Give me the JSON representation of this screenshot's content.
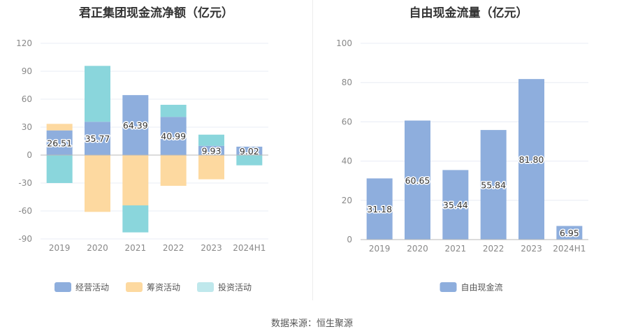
{
  "source_label": "数据来源：恒生聚源",
  "colors": {
    "operating": "#8eaedd",
    "financing": "#fdd9a0",
    "investing": "#8ad6dc",
    "fcf": "#8eaedd"
  },
  "chart_data": [
    {
      "type": "bar",
      "stacked": true,
      "title": "君正集团现金流净额（亿元）",
      "categories": [
        "2019",
        "2020",
        "2021",
        "2022",
        "2023",
        "2024H1"
      ],
      "series": [
        {
          "name": "经营活动",
          "values": [
            26.51,
            35.77,
            64.39,
            40.99,
            9.93,
            9.02
          ],
          "color": "#8eaedd"
        },
        {
          "name": "筹资活动",
          "values": [
            7,
            -61,
            -54,
            -33,
            -26,
            0
          ],
          "color": "#fdd9a0"
        },
        {
          "name": "投资活动",
          "values": [
            -30,
            60,
            -29,
            13,
            12,
            -11
          ],
          "color": "#8ad6dc"
        }
      ],
      "data_labels": [
        "26.51",
        "35.77",
        "64.39",
        "40.99",
        "9.93",
        "9.02"
      ],
      "y_ticks": [
        "120",
        "90",
        "60",
        "30",
        "0",
        "-30",
        "-60",
        "-90"
      ],
      "ylim": [
        -90,
        120
      ],
      "grid": true,
      "legend_position": "bottom"
    },
    {
      "type": "bar",
      "title": "自由现金流量（亿元）",
      "categories": [
        "2019",
        "2020",
        "2021",
        "2022",
        "2023",
        "2024H1"
      ],
      "series": [
        {
          "name": "自由现金流",
          "values": [
            31.18,
            60.65,
            35.44,
            55.84,
            81.8,
            6.95
          ],
          "color": "#8eaedd"
        }
      ],
      "data_labels": [
        "31.18",
        "60.65",
        "35.44",
        "55.84",
        "81.80",
        "6.95"
      ],
      "y_ticks": [
        "100",
        "80",
        "60",
        "40",
        "20",
        "0"
      ],
      "ylim": [
        0,
        100
      ],
      "grid": true,
      "legend_position": "bottom"
    }
  ]
}
